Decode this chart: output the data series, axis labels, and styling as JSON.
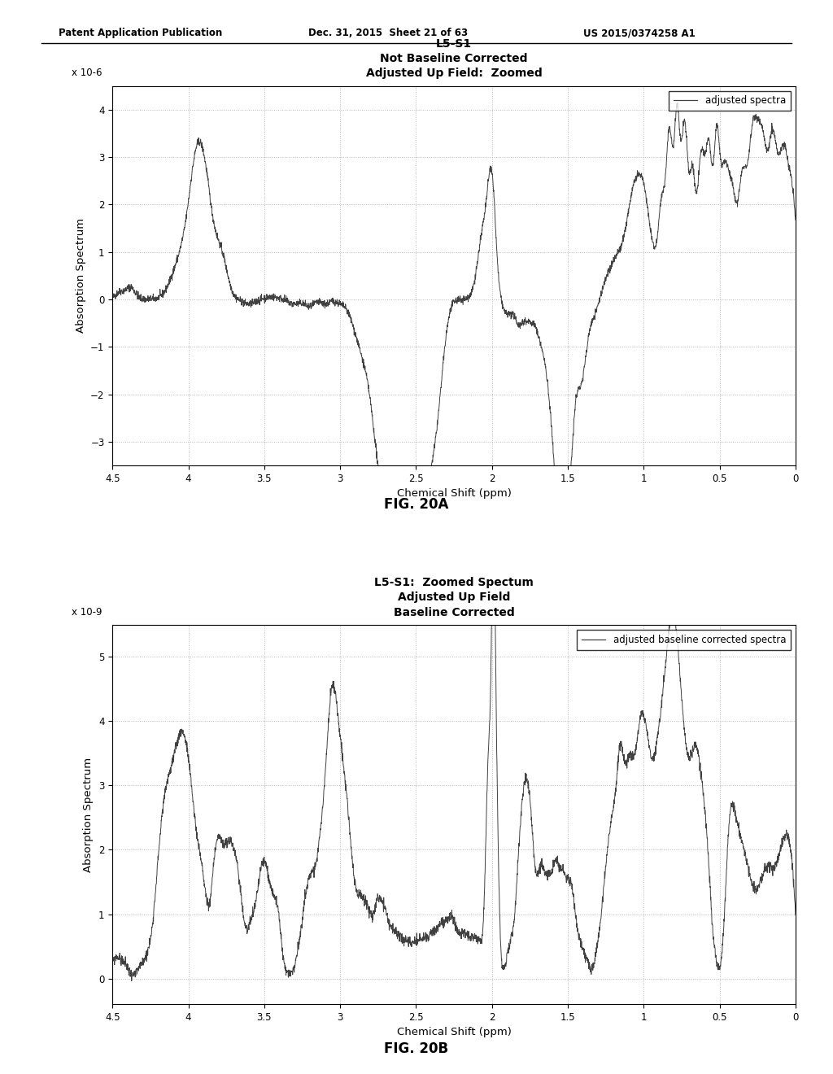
{
  "header_left": "Patent Application Publication",
  "header_mid": "Dec. 31, 2015  Sheet 21 of 63",
  "header_right": "US 2015/0374258 A1",
  "fig_a_title_line1": "L5-S1",
  "fig_a_title_line2": "Not Baseline Corrected",
  "fig_a_title_line3": "Adjusted Up Field:  Zoomed",
  "fig_a_ylabel": "Absorption Spectrum",
  "fig_a_xlabel": "Chemical Shift (ppm)",
  "fig_a_scale_label": "x 10-6",
  "fig_a_legend": "adjusted spectra",
  "fig_a_xlim": [
    4.5,
    0
  ],
  "fig_a_ylim": [
    -3.5,
    4.5
  ],
  "fig_a_yticks": [
    -3,
    -2,
    -1,
    0,
    1,
    2,
    3,
    4
  ],
  "fig_a_xticks": [
    4.5,
    4,
    3.5,
    3,
    2.5,
    2,
    1.5,
    1,
    0.5,
    0
  ],
  "fig_a_caption": "FIG. 20A",
  "fig_b_title_line1": "L5-S1:  Zoomed Spectum",
  "fig_b_title_line2": "Adjusted Up Field",
  "fig_b_title_line3": "Baseline Corrected",
  "fig_b_ylabel": "Absorption Spectrum",
  "fig_b_xlabel": "Chemical Shift (ppm)",
  "fig_b_scale_label": "x 10-9",
  "fig_b_legend": "adjusted baseline corrected spectra",
  "fig_b_xlim": [
    4.5,
    0
  ],
  "fig_b_ylim": [
    -0.4,
    5.5
  ],
  "fig_b_yticks": [
    0,
    1,
    2,
    3,
    4,
    5
  ],
  "fig_b_xticks": [
    4.5,
    4,
    3.5,
    3,
    2.5,
    2,
    1.5,
    1,
    0.5,
    0
  ],
  "fig_b_caption": "FIG. 20B",
  "line_color": "#404040",
  "background_color": "#ffffff",
  "grid_color": "#b0b0b0"
}
